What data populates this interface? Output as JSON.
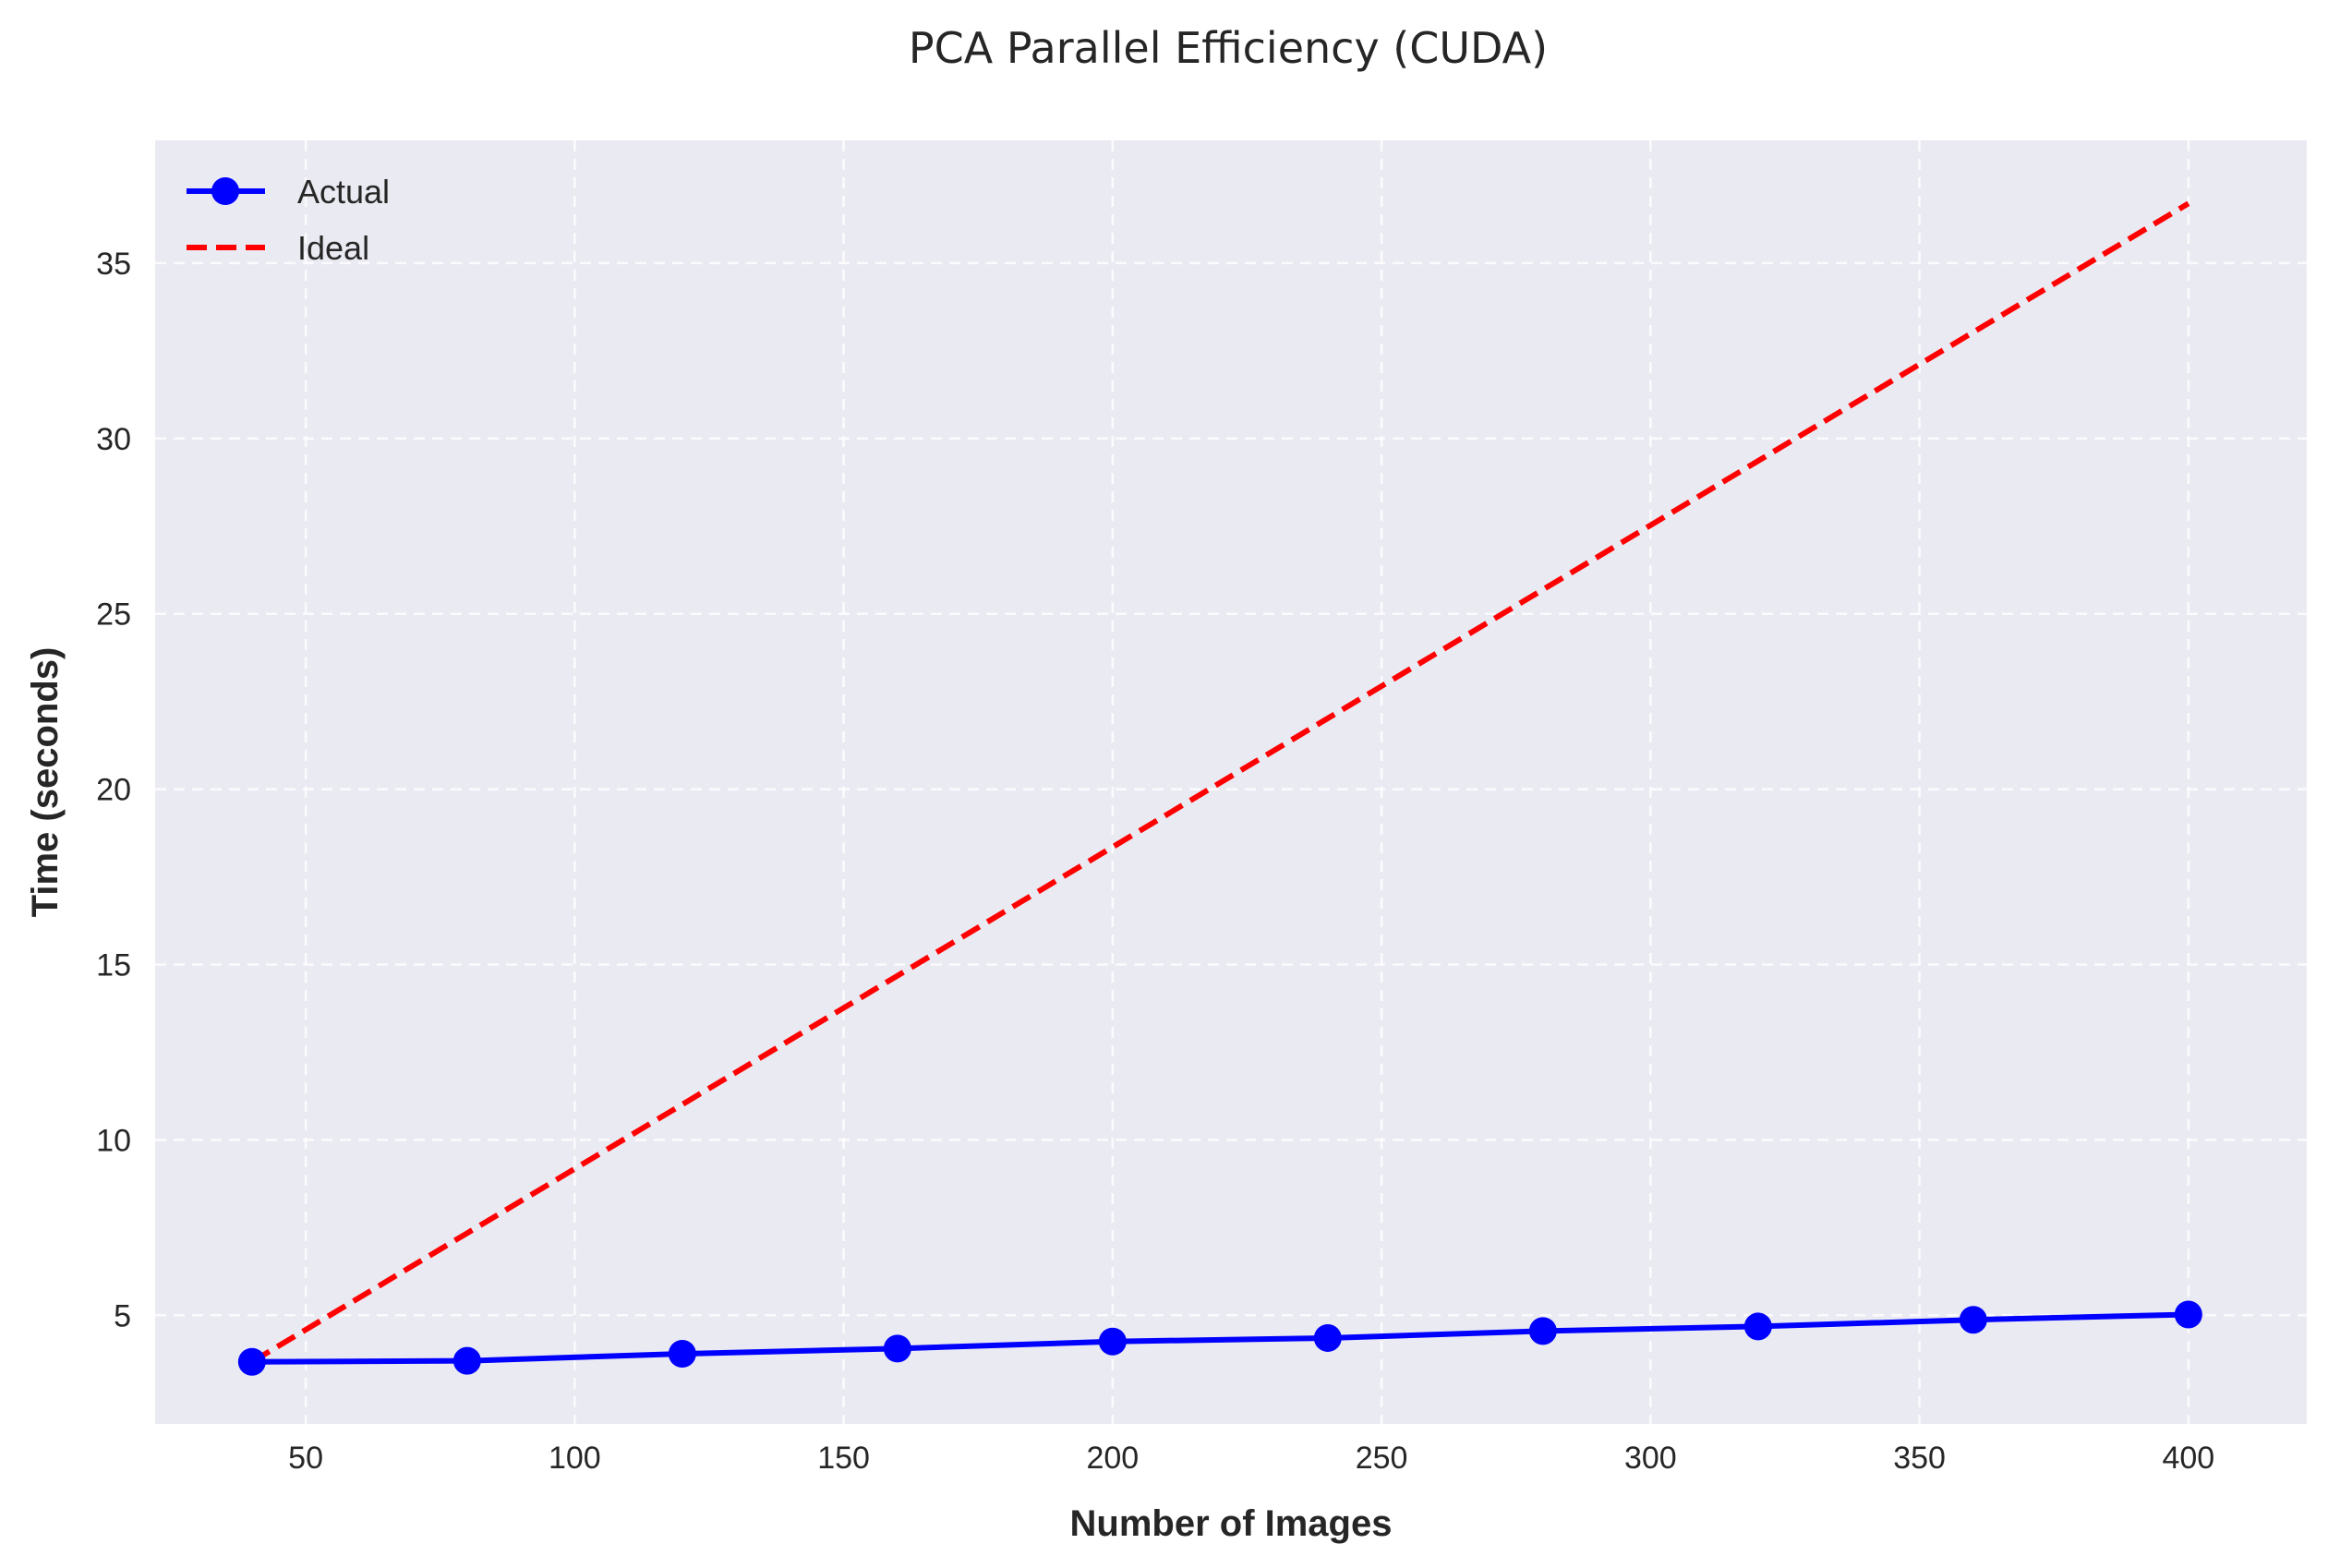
{
  "chart_data": {
    "type": "line",
    "title": "PCA Parallel Efficiency (CUDA)",
    "xlabel": "Number of Images",
    "ylabel": "Time (seconds)",
    "xlim": [
      22,
      422
    ],
    "ylim": [
      1.9,
      38.5
    ],
    "xticks": [
      50,
      100,
      150,
      200,
      250,
      300,
      350,
      400
    ],
    "yticks": [
      5,
      10,
      15,
      20,
      25,
      30,
      35
    ],
    "grid": true,
    "legend_position": "top-left",
    "x": [
      40,
      80,
      120,
      160,
      200,
      240,
      280,
      320,
      360,
      400
    ],
    "series": [
      {
        "name": "Actual",
        "style": "solid-with-markers",
        "color": "#0000ff",
        "values": [
          3.67,
          3.7,
          3.9,
          4.05,
          4.25,
          4.35,
          4.55,
          4.68,
          4.87,
          5.02
        ]
      },
      {
        "name": "Ideal",
        "style": "dashed",
        "color": "#ff0000",
        "values": [
          3.67,
          7.34,
          11.01,
          14.68,
          18.35,
          22.02,
          25.69,
          29.36,
          33.03,
          36.7
        ]
      }
    ],
    "background_color": "#eaeaf2"
  }
}
